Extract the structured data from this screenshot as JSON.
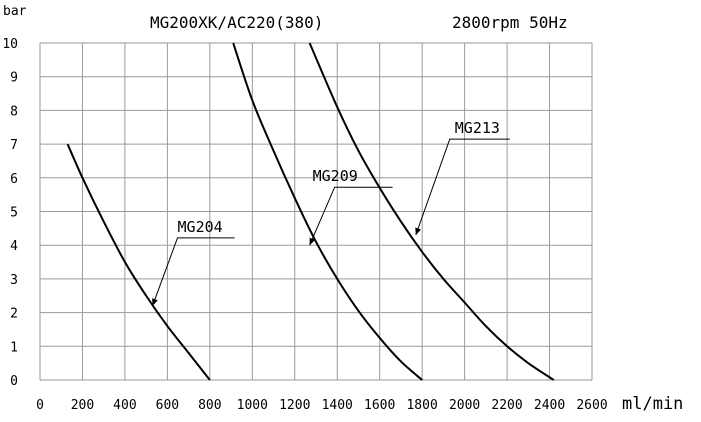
{
  "chart_data": {
    "type": "line",
    "title": "MG200XK/AC220(380)",
    "subtitle": "2800rpm 50Hz",
    "xlabel": "ml/min",
    "ylabel": "bar",
    "xlim": [
      0,
      2600
    ],
    "ylim": [
      0,
      10
    ],
    "x_ticks": [
      "0",
      "200",
      "400",
      "600",
      "800",
      "1000",
      "1200",
      "1400",
      "1600",
      "1800",
      "2000",
      "2200",
      "2400",
      "2600"
    ],
    "y_ticks": [
      "0",
      "1",
      "2",
      "3",
      "4",
      "5",
      "6",
      "7",
      "8",
      "9",
      "10"
    ],
    "grid": true,
    "series": [
      {
        "name": "MG204",
        "x": [
          130,
          200,
          300,
          400,
          500,
          600,
          700,
          800
        ],
        "y": [
          7,
          6.0,
          4.7,
          3.5,
          2.5,
          1.6,
          0.8,
          0
        ],
        "label_anchor": [
          530,
          2.2
        ]
      },
      {
        "name": "MG209",
        "x": [
          910,
          1000,
          1100,
          1200,
          1300,
          1400,
          1500,
          1600,
          1700,
          1800
        ],
        "y": [
          10,
          8.3,
          6.8,
          5.4,
          4.1,
          3.0,
          2.05,
          1.25,
          0.55,
          0
        ],
        "label_anchor": [
          1270,
          4.0
        ]
      },
      {
        "name": "MG213",
        "x": [
          1270,
          1400,
          1500,
          1600,
          1700,
          1800,
          1900,
          2000,
          2100,
          2200,
          2300,
          2420
        ],
        "y": [
          10,
          8.1,
          6.8,
          5.7,
          4.7,
          3.8,
          3.0,
          2.3,
          1.6,
          1.0,
          0.5,
          0
        ],
        "label_anchor": [
          1770,
          4.3
        ]
      }
    ]
  }
}
